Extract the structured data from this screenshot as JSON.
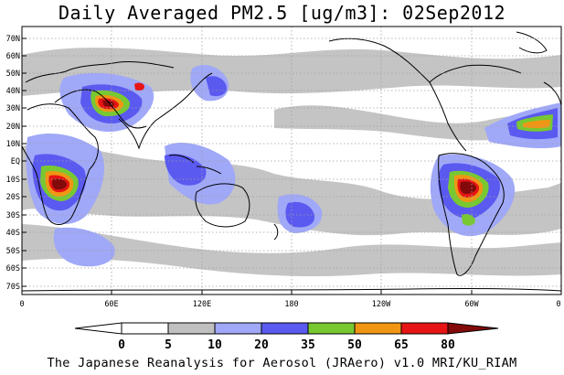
{
  "title": "Daily Averaged PM2.5 [ug/m3]: 02Sep2012",
  "footer": "The Japanese Reanalysis for Aerosol (JRAero) v1.0 MRI/KU_RIAM",
  "map": {
    "projection": "equirectangular, 0E centered at 180",
    "lon_range": [
      0,
      360
    ],
    "lat_range": [
      -75,
      75
    ],
    "lat_ticks": [
      "70N",
      "60N",
      "50N",
      "40N",
      "30N",
      "20N",
      "10N",
      "EQ",
      "10S",
      "20S",
      "30S",
      "40S",
      "50S",
      "60S",
      "70S"
    ],
    "lon_ticks": [
      "0",
      "60E",
      "120E",
      "180",
      "120W",
      "60W",
      "0"
    ],
    "grid": "dotted"
  },
  "colorbar": {
    "levels": [
      "0",
      "5",
      "10",
      "20",
      "35",
      "50",
      "65",
      "80"
    ],
    "colors": {
      "below_0": "#ffffff",
      "0_5": "#ffffff",
      "5_10": "#c0c0c0",
      "10_20": "#a0a8f8",
      "20_35": "#5a5af0",
      "35_50": "#78c832",
      "50_65": "#f09614",
      "65_80": "#e61414",
      "above_80": "#820a0a"
    }
  }
}
